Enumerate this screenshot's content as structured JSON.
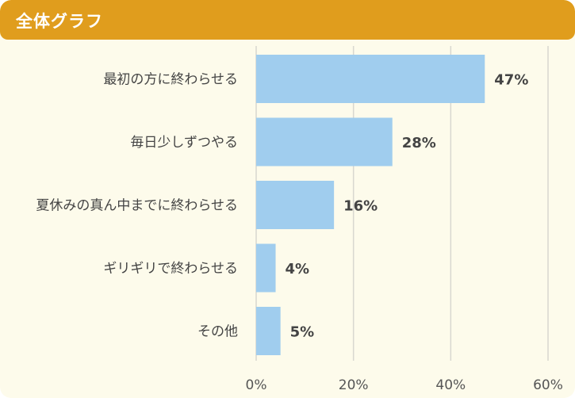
{
  "header": {
    "title": "全体グラフ"
  },
  "colors": {
    "header": "#e09d1d",
    "background": "#fdfbeb",
    "bar": "#a0cdee",
    "grid": "#d8d8d0",
    "text": "#444444"
  },
  "chart_data": {
    "type": "bar",
    "orientation": "horizontal",
    "title": "",
    "xlabel": "",
    "ylabel": "",
    "categories": [
      "最初の方に終わらせる",
      "毎日少しずつやる",
      "夏休みの真ん中までに終わらせる",
      "ギリギリで終わらせる",
      "その他"
    ],
    "values": [
      47,
      28,
      16,
      4,
      5
    ],
    "value_labels": [
      "47%",
      "28%",
      "16%",
      "4%",
      "5%"
    ],
    "xlim": [
      0,
      60
    ],
    "xticks": [
      0,
      20,
      40,
      60
    ],
    "xtick_labels": [
      "0%",
      "20%",
      "40%",
      "60%"
    ],
    "grid": true,
    "legend": "none"
  }
}
